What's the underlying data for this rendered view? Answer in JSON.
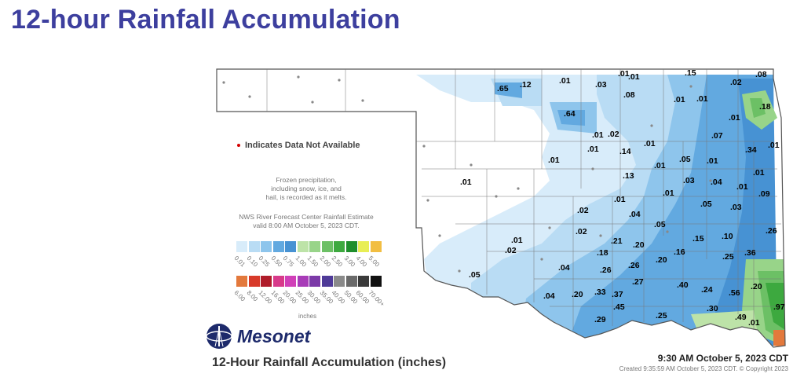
{
  "title": "12-hour Rainfall Accumulation",
  "legend_note": "Indicates Data Not Available",
  "frozen_note": [
    "Frozen precipitation,",
    "including snow, ice, and",
    "hail, is recorded as it melts."
  ],
  "nws_note": [
    "NWS River Forecast Center Rainfall Estimate",
    "valid 8:00 AM October 5, 2023 CDT."
  ],
  "scale_row1": [
    {
      "label": "0.01",
      "color": "#d8ecfa"
    },
    {
      "label": "0.10",
      "color": "#b9dcf4"
    },
    {
      "label": "0.25",
      "color": "#8ec5ec"
    },
    {
      "label": "0.50",
      "color": "#62a9e0"
    },
    {
      "label": "0.75",
      "color": "#4792d3"
    },
    {
      "label": "1.00",
      "color": "#bde3a8"
    },
    {
      "label": "1.50",
      "color": "#98d489"
    },
    {
      "label": "2.00",
      "color": "#6cc065"
    },
    {
      "label": "2.50",
      "color": "#3da93f"
    },
    {
      "label": "3.00",
      "color": "#1e8e2c"
    },
    {
      "label": "4.00",
      "color": "#e8ee55"
    },
    {
      "label": "5.00",
      "color": "#f2be42"
    }
  ],
  "scale_row2": [
    {
      "label": "6.00",
      "color": "#e3793c"
    },
    {
      "label": "8.00",
      "color": "#d83a2a"
    },
    {
      "label": "12.00",
      "color": "#b01c2a"
    },
    {
      "label": "16.00",
      "color": "#d83a8a"
    },
    {
      "label": "20.00",
      "color": "#d040b8"
    },
    {
      "label": "25.00",
      "color": "#a83cb8"
    },
    {
      "label": "30.00",
      "color": "#7c3aa8"
    },
    {
      "label": "35.00",
      "color": "#4f3a98"
    },
    {
      "label": "40.00",
      "color": "#8a8a8a"
    },
    {
      "label": "50.00",
      "color": "#6a6a6a"
    },
    {
      "label": "60.00",
      "color": "#3a3a3a"
    },
    {
      "label": "70.00+",
      "color": "#111111"
    }
  ],
  "scale_unit": "inches",
  "logo_text": "Mesonet",
  "subtitle": "12-Hour Rainfall Accumulation (inches)",
  "timestamp": "9:30 AM October 5, 2023 CDT",
  "created": "Created 9:35:59 AM October 5, 2023 CDT. © Copyright 2023",
  "station_values": [
    ".65",
    ".12",
    ".01",
    ".03",
    ".01",
    ".01",
    ".15",
    ".02",
    ".08",
    ".08",
    ".01",
    ".01",
    ".18",
    ".64",
    ".01",
    ".01",
    ".02",
    ".07",
    ".34",
    ".01",
    ".01",
    ".14",
    ".01",
    ".01",
    ".01",
    ".05",
    ".01",
    ".01",
    ".13",
    ".01",
    ".03",
    ".04",
    ".01",
    ".09",
    ".01",
    ".01",
    ".05",
    ".03",
    ".02",
    ".04",
    ".05",
    ".02",
    ".26",
    ".01",
    ".21",
    ".20",
    ".15",
    ".10",
    ".02",
    ".18",
    ".16",
    ".25",
    ".36",
    ".05",
    ".04",
    ".26",
    ".26",
    ".20",
    ".27",
    ".40",
    ".24",
    ".56",
    ".04",
    ".20",
    ".33",
    ".37",
    ".45",
    ".30",
    ".29",
    ".25",
    ".49",
    ".01",
    ".20",
    ".97"
  ]
}
